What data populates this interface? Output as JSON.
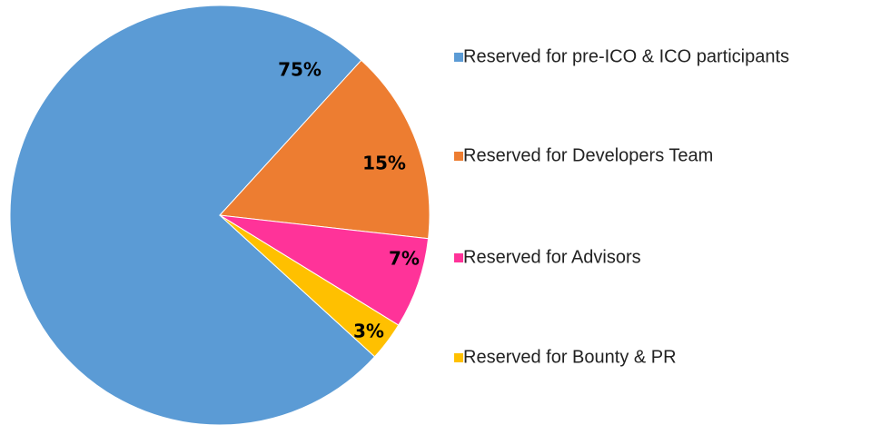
{
  "chart_data": {
    "type": "pie",
    "categories": [
      "Reserved for pre-ICO & ICO participants",
      "Reserved for Developers Team",
      "Reserved for Advisors",
      "Reserved for Bounty & PR"
    ],
    "values": [
      75,
      15,
      7,
      3
    ],
    "value_labels": [
      "75%",
      "15%",
      "7%",
      "3%"
    ],
    "colors": [
      "#5b9bd5",
      "#ed7d31",
      "#ff3399",
      "#ffc000"
    ],
    "legend": "right"
  }
}
